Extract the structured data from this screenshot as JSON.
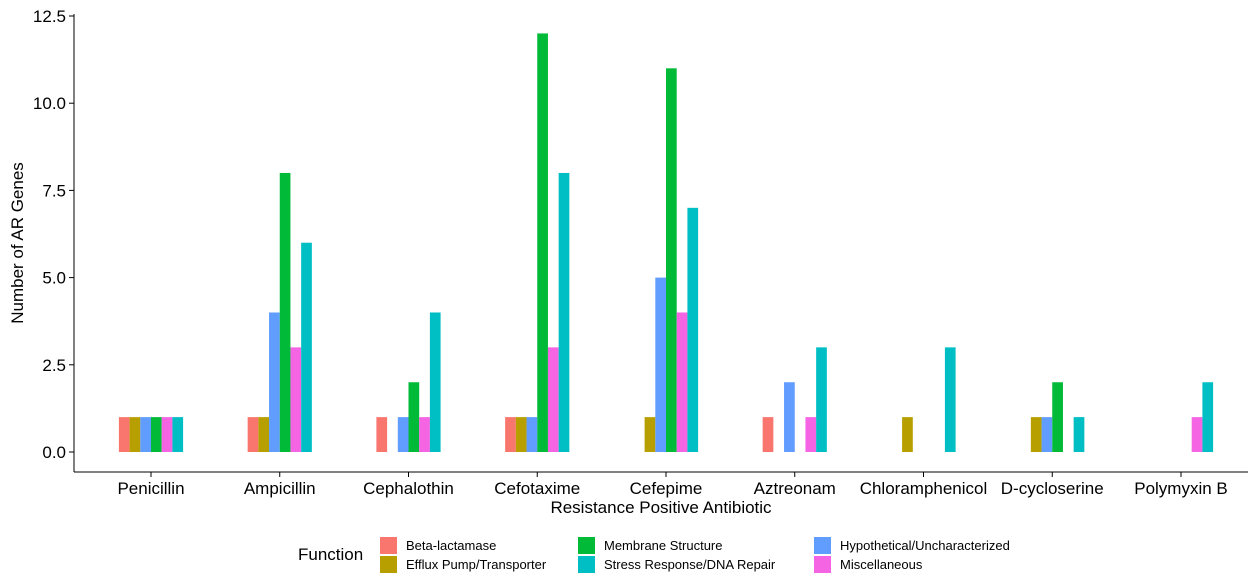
{
  "chart_data": {
    "type": "bar",
    "xlabel": "Resistance Positive Antibiotic",
    "ylabel": "Number of AR Genes",
    "ylim": [
      0,
      12.5
    ],
    "yticks": [
      0.0,
      2.5,
      5.0,
      7.5,
      10.0,
      12.5
    ],
    "ytick_labels": [
      "0.0",
      "2.5",
      "5.0",
      "7.5",
      "10.0",
      "12.5"
    ],
    "grid": false,
    "legend_position": "bottom",
    "legend_title": "Function",
    "categories": [
      "Penicillin",
      "Ampicillin",
      "Cephalothin",
      "Cefotaxime",
      "Cefepime",
      "Aztreonam",
      "Chloramphenicol",
      "D-cycloserine",
      "Polymyxin B"
    ],
    "series": [
      {
        "name": "Beta-lactamase",
        "color": "#F8766D",
        "values": [
          1,
          1,
          1,
          1,
          0,
          1,
          0,
          0,
          0
        ]
      },
      {
        "name": "Efflux Pump/Transporter",
        "color": "#B79F00",
        "values": [
          1,
          1,
          0,
          1,
          1,
          0,
          1,
          1,
          0
        ]
      },
      {
        "name": "Hypothetical/Uncharacterized",
        "color": "#619CFF",
        "values": [
          1,
          4,
          1,
          1,
          5,
          2,
          0,
          1,
          0
        ]
      },
      {
        "name": "Membrane Structure",
        "color": "#00BA38",
        "values": [
          1,
          8,
          2,
          12,
          11,
          0,
          0,
          2,
          0
        ]
      },
      {
        "name": "Miscellaneous",
        "color": "#F564E3",
        "values": [
          1,
          3,
          1,
          3,
          4,
          1,
          0,
          0,
          1
        ]
      },
      {
        "name": "Stress Response/DNA Repair",
        "color": "#00BFC4",
        "values": [
          1,
          6,
          4,
          8,
          7,
          3,
          3,
          1,
          2
        ]
      }
    ]
  }
}
